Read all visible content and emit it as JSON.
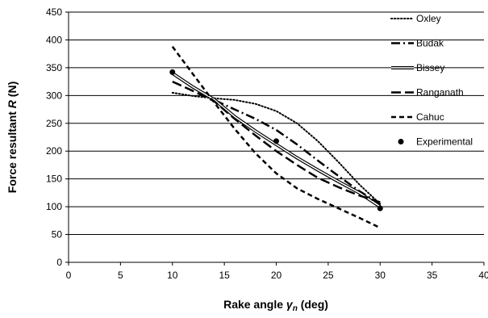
{
  "chart_data": {
    "type": "line",
    "xlabel": {
      "text": "Rake angle ",
      "symbol": "γ",
      "subscript": "n",
      "unit": " (deg)"
    },
    "ylabel": {
      "text": "Force resultant ",
      "symbol": "R",
      "unit": " (N)"
    },
    "xlim": [
      0,
      40
    ],
    "ylim": [
      0,
      450
    ],
    "xticks": [
      "0",
      "5",
      "10",
      "15",
      "20",
      "25",
      "30",
      "35",
      "40"
    ],
    "yticks": [
      "0",
      "50",
      "100",
      "150",
      "200",
      "250",
      "300",
      "350",
      "400",
      "450"
    ],
    "grid": "horizontal",
    "legend_position": "right",
    "series": [
      {
        "name": "Oxley",
        "style": "dotted",
        "x": [
          10,
          12,
          14,
          16,
          18,
          20,
          22,
          24,
          26,
          28,
          30
        ],
        "y": [
          305,
          299,
          295,
          292,
          285,
          272,
          250,
          218,
          180,
          140,
          105
        ]
      },
      {
        "name": "Budak",
        "style": "dashdot",
        "x": [
          10,
          12,
          14,
          16,
          18,
          20,
          22,
          24,
          26,
          28,
          30
        ],
        "y": [
          340,
          315,
          292,
          275,
          258,
          238,
          212,
          183,
          155,
          128,
          105
        ]
      },
      {
        "name": "Bissey",
        "style": "double",
        "x": [
          10,
          12,
          14,
          16,
          18,
          20,
          22,
          24,
          26,
          28,
          30
        ],
        "y": [
          340,
          315,
          293,
          262,
          236,
          212,
          188,
          166,
          145,
          125,
          100
        ]
      },
      {
        "name": "Ranganath",
        "style": "longdash",
        "x": [
          10,
          12,
          14,
          16,
          18,
          20,
          22,
          24,
          26,
          28,
          30
        ],
        "y": [
          325,
          308,
          290,
          258,
          228,
          200,
          175,
          152,
          135,
          120,
          108
        ]
      },
      {
        "name": "Cahuc",
        "style": "dashed",
        "x": [
          10,
          12,
          14,
          16,
          18,
          20,
          22,
          24,
          26,
          28,
          30
        ],
        "y": [
          388,
          338,
          288,
          240,
          196,
          160,
          133,
          114,
          97,
          80,
          62
        ]
      },
      {
        "name": "Experimental",
        "style": "marker",
        "x": [
          10,
          20,
          30
        ],
        "y": [
          342,
          218,
          97
        ]
      }
    ]
  }
}
